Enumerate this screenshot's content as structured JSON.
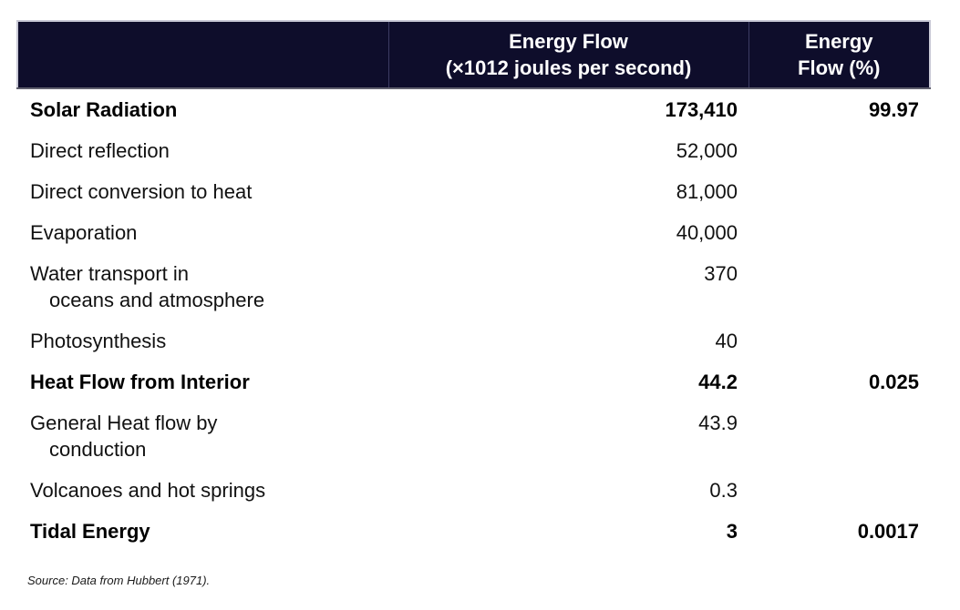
{
  "table": {
    "header": {
      "flow_line1": "Energy Flow",
      "flow_line2": "(×1012 joules per second)",
      "pct_line1": "Energy",
      "pct_line2": "Flow (%)"
    },
    "rows": [
      {
        "label": "Solar Radiation",
        "label2": "",
        "flow": "173,410",
        "pct": "99.97",
        "bold": true
      },
      {
        "label": "Direct reflection",
        "label2": "",
        "flow": "52,000",
        "pct": "",
        "bold": false
      },
      {
        "label": "Direct conversion to heat",
        "label2": "",
        "flow": "81,000",
        "pct": "",
        "bold": false
      },
      {
        "label": "Evaporation",
        "label2": "",
        "flow": "40,000",
        "pct": "",
        "bold": false
      },
      {
        "label": "Water transport in",
        "label2": "oceans and atmosphere",
        "flow": "370",
        "pct": "",
        "bold": false
      },
      {
        "label": "Photosynthesis",
        "label2": "",
        "flow": "40",
        "pct": "",
        "bold": false
      },
      {
        "label": "Heat Flow from Interior",
        "label2": "",
        "flow": "44.2",
        "pct": "0.025",
        "bold": true
      },
      {
        "label": "General Heat flow by",
        "label2": "conduction",
        "flow": "43.9",
        "pct": "",
        "bold": false
      },
      {
        "label": "Volcanoes and hot springs",
        "label2": "",
        "flow": "0.3",
        "pct": "",
        "bold": false
      },
      {
        "label": "Tidal Energy",
        "label2": "",
        "flow": "3",
        "pct": "0.0017",
        "bold": true
      }
    ],
    "source_note": "Source: Data from Hubbert (1971)."
  },
  "colors": {
    "header_bg": "#0e0d2b",
    "header_text": "#ffffff",
    "header_divider": "#3c3c64",
    "header_outer_border": "#c9c9d6",
    "header_bottom_border": "#60606e",
    "body_text": "#111111",
    "page_bg": "#ffffff"
  }
}
